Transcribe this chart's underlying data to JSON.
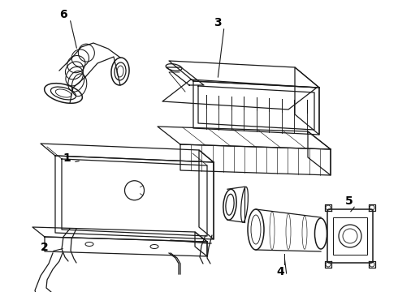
{
  "background_color": "#ffffff",
  "line_color": "#1a1a1a",
  "label_color": "#000000",
  "label_fontsize": 10,
  "figsize": [
    4.9,
    3.6
  ],
  "dpi": 100
}
